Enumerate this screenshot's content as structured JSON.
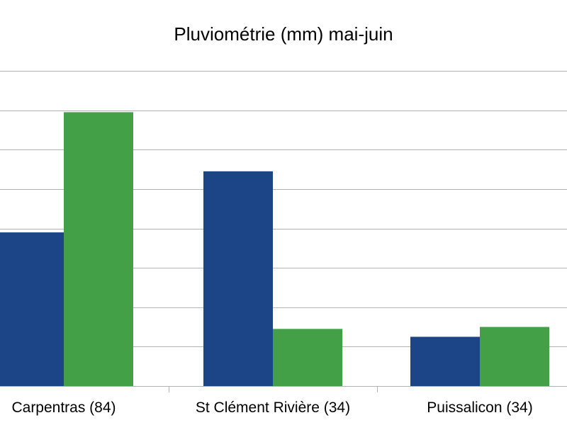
{
  "chart_data": {
    "type": "bar",
    "title": "Pluviométrie (mm) mai-juin",
    "categories": [
      "Carpentras (84)",
      "St Clément Rivière (34)",
      "Puissalicon (34)"
    ],
    "series": [
      {
        "color": "#1c4587",
        "values": [
          78,
          109,
          25
        ]
      },
      {
        "color": "#43a047",
        "values": [
          139,
          29,
          30
        ]
      }
    ],
    "ylim": [
      0,
      160
    ],
    "grid": true,
    "legend": "none"
  }
}
